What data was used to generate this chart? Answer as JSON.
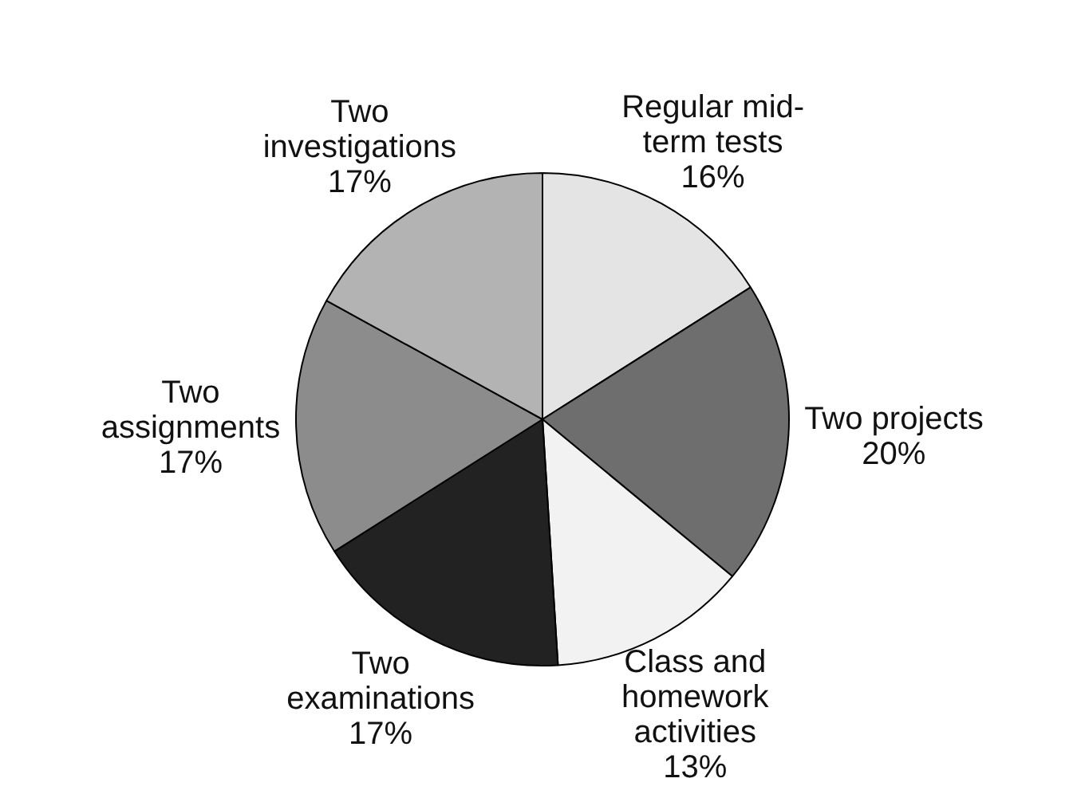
{
  "chart_data": {
    "type": "pie",
    "categories": [
      "Regular mid-term tests",
      "Two projects",
      "Class and homework activities",
      "Two examinations",
      "Two assignments",
      "Two investigations"
    ],
    "values": [
      16,
      20,
      13,
      17,
      17,
      17
    ],
    "value_labels": [
      "16%",
      "20%",
      "13%",
      "17%",
      "17%",
      "17%"
    ],
    "colors": [
      "#e4e4e4",
      "#6e6e6e",
      "#f2f2f2",
      "#222222",
      "#8c8c8c",
      "#b3b3b3"
    ],
    "legend": false
  }
}
